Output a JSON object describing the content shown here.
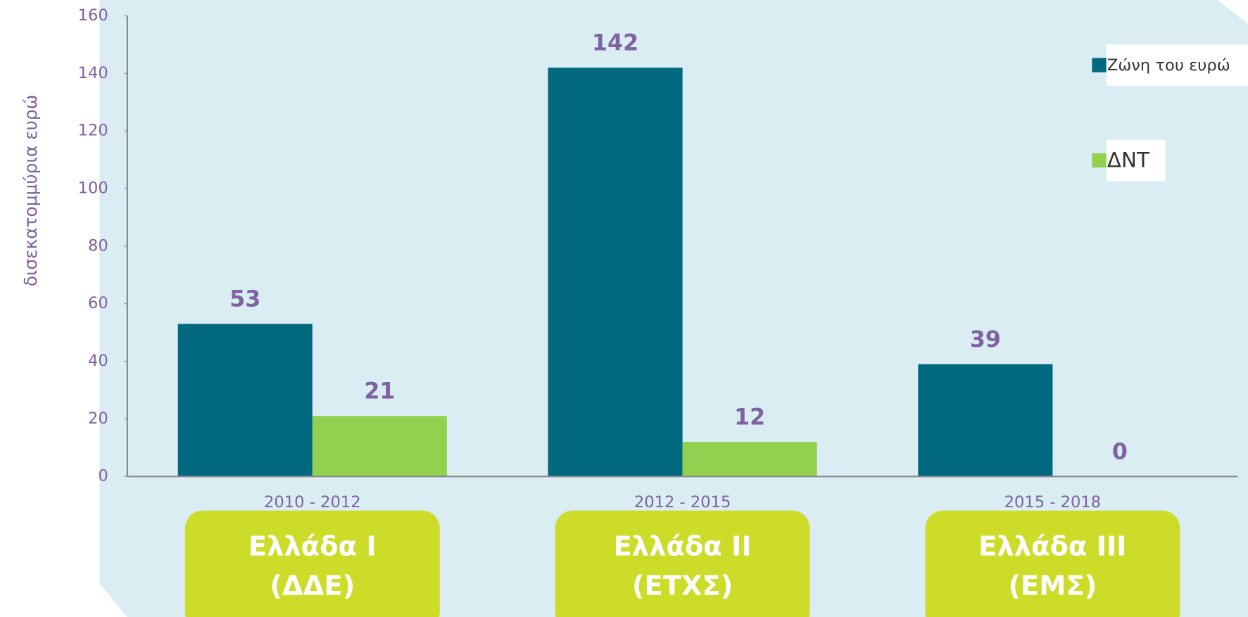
{
  "chart_data": {
    "type": "bar",
    "ylabel": "δισεκατομμύρια ευρώ",
    "categories": [
      "2010 - 2012",
      "2012 - 2015",
      "2015 - 2018"
    ],
    "series": [
      {
        "name": "Ζώνη του ευρώ",
        "color": "#00687f",
        "values": [
          53,
          142,
          39
        ]
      },
      {
        "name": "ΔΝΤ",
        "color": "#92d050",
        "values": [
          21,
          12,
          0
        ]
      }
    ],
    "ylim": [
      0,
      160
    ],
    "yticks": [
      0,
      20,
      40,
      60,
      80,
      100,
      120,
      140,
      160
    ],
    "legend": "right",
    "program_labels": [
      [
        "Ελλάδα I",
        "(ΔΔΕ)"
      ],
      [
        "Ελλάδα II",
        "(ΕΤΧΣ)"
      ],
      [
        "Ελλάδα III",
        "(ΕΜΣ)"
      ]
    ]
  }
}
